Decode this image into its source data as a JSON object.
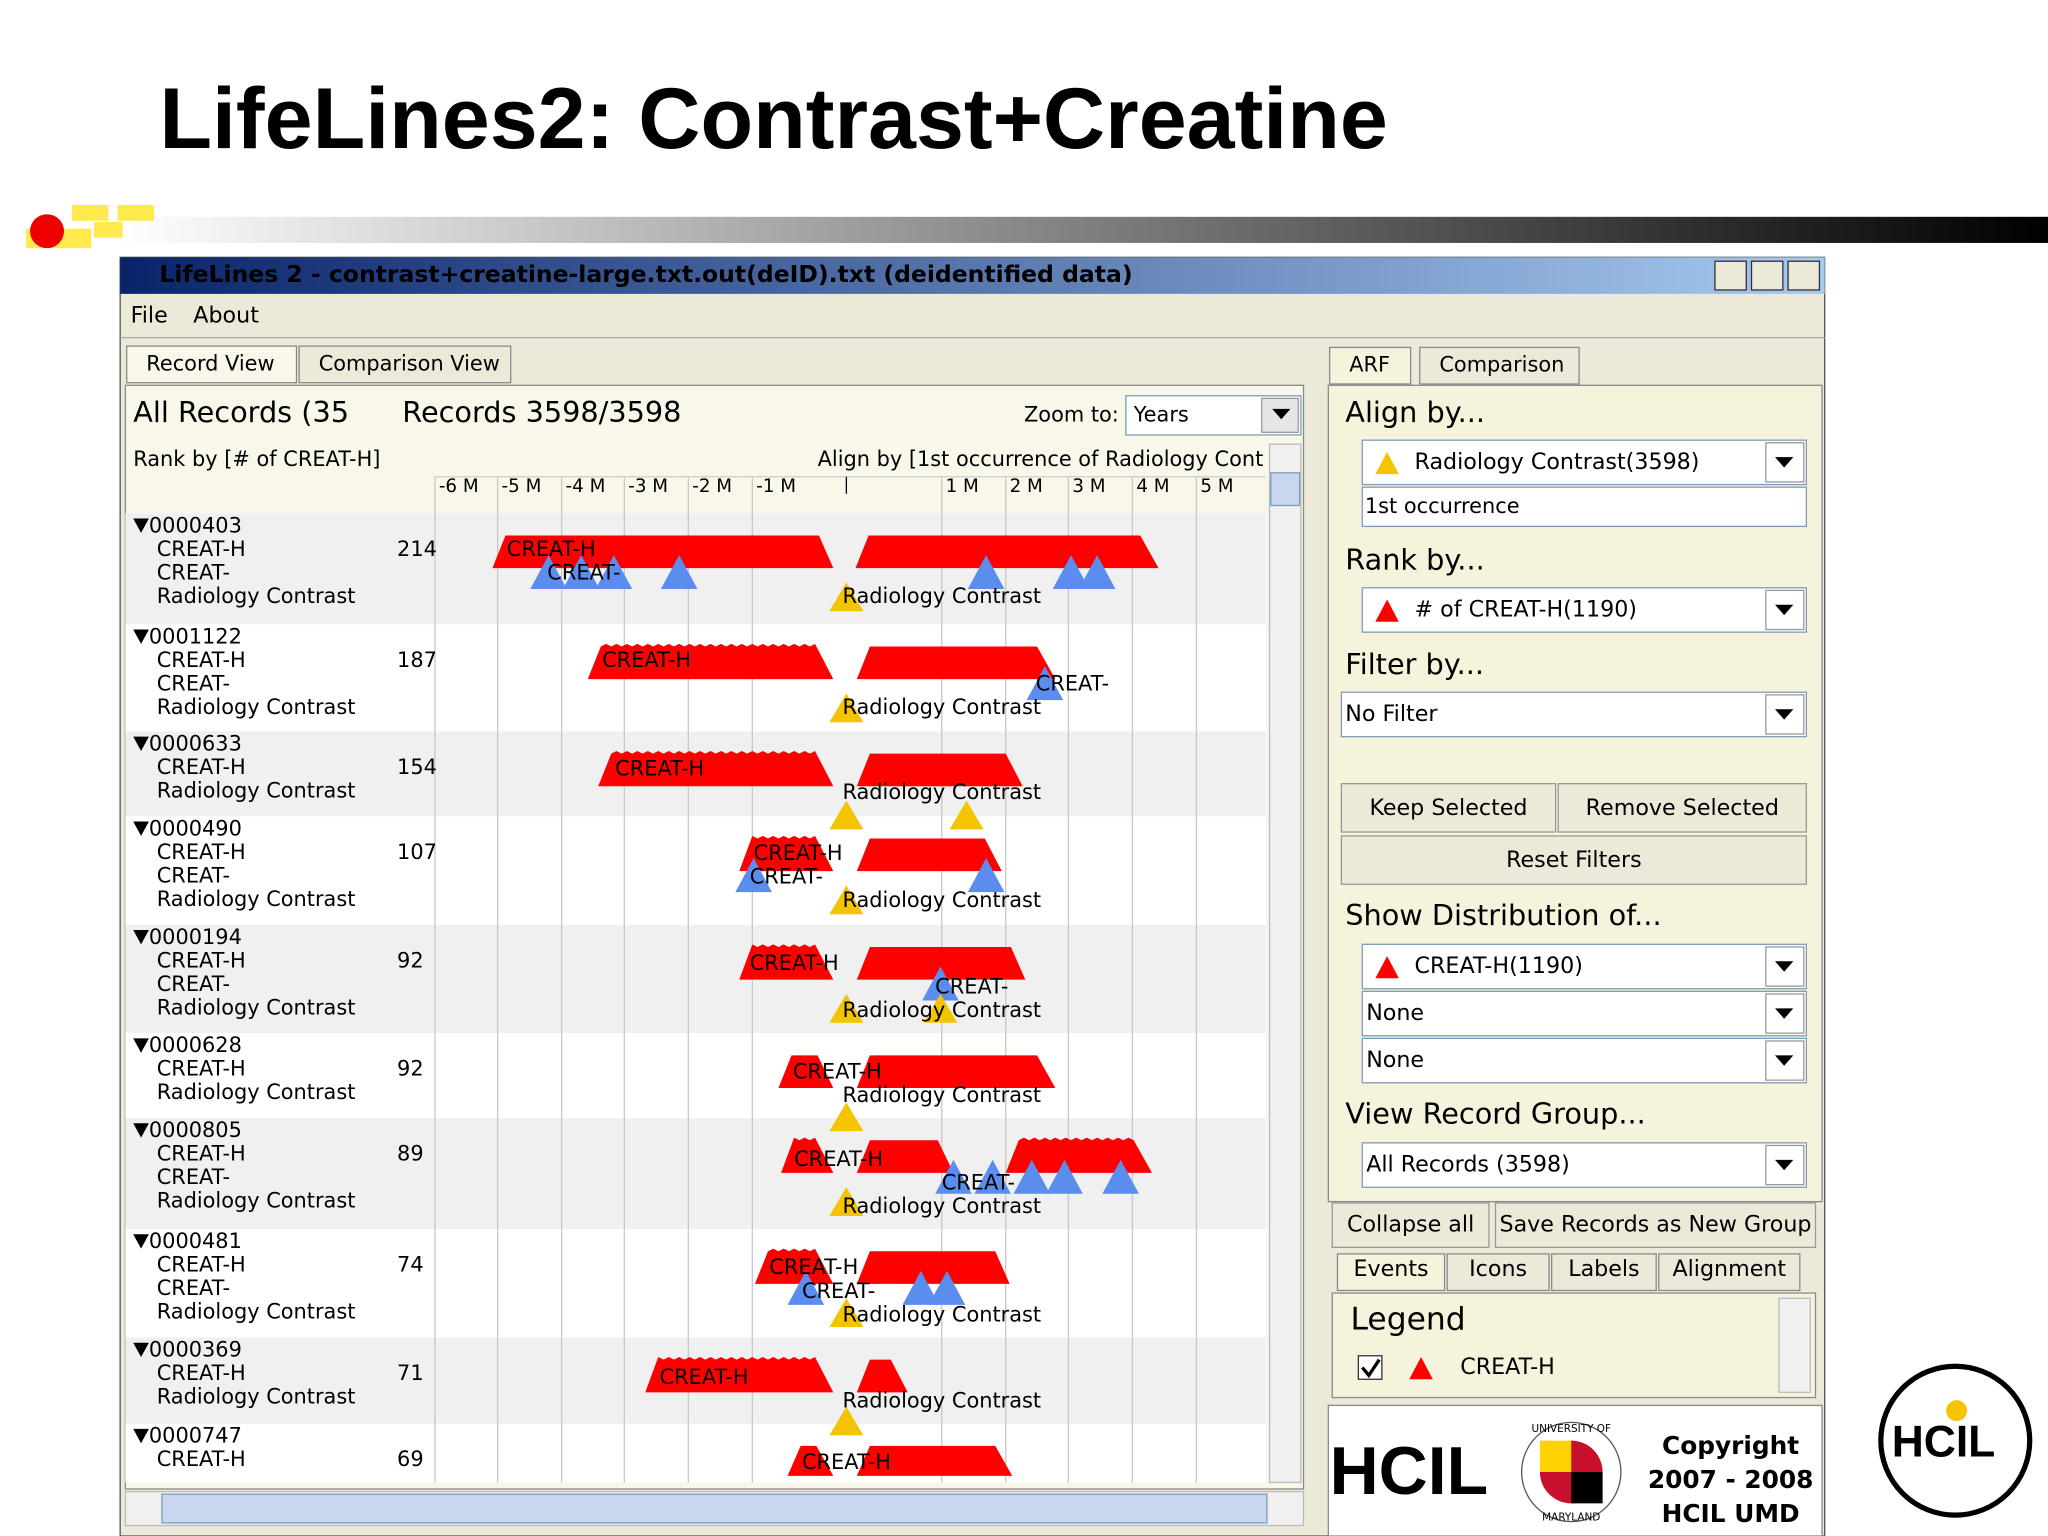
{
  "slide_title": "LifeLines2: Contrast+Creatine",
  "window": {
    "title": "LifeLines 2 - contrast+creatine-large.txt.out(deID).txt (deidentified data)",
    "menu": [
      "File",
      "About"
    ]
  },
  "left_panel": {
    "tabs": [
      "Record View",
      "Comparison View"
    ],
    "group_label": "All Records (35",
    "records_label": "Records 3598/3598",
    "zoom_label": "Zoom to:",
    "zoom_value": "Years",
    "rank_label": "Rank by [# of CREAT-H]",
    "align_label": "Align by  [1st occurrence of Radiology Cont",
    "time_ticks": [
      "-6 M",
      "-5 M",
      "-4 M",
      "-3 M",
      "-2 M",
      "-1 M",
      "1 M",
      "2 M",
      "3 M",
      "4 M",
      "5 M"
    ],
    "records": [
      {
        "id": "0000403",
        "count": 214,
        "events": [
          "CREAT-H",
          "CREAT-",
          "Radiology Contrast"
        ]
      },
      {
        "id": "0001122",
        "count": 187,
        "events": [
          "CREAT-H",
          "CREAT-",
          "Radiology Contrast"
        ]
      },
      {
        "id": "0000633",
        "count": 154,
        "events": [
          "CREAT-H",
          "Radiology Contrast"
        ]
      },
      {
        "id": "0000490",
        "count": 107,
        "events": [
          "CREAT-H",
          "CREAT-",
          "Radiology Contrast"
        ]
      },
      {
        "id": "0000194",
        "count": 92,
        "events": [
          "CREAT-H",
          "CREAT-",
          "Radiology Contrast"
        ]
      },
      {
        "id": "0000628",
        "count": 92,
        "events": [
          "CREAT-H",
          "Radiology Contrast"
        ]
      },
      {
        "id": "0000805",
        "count": 89,
        "events": [
          "CREAT-H",
          "CREAT-",
          "Radiology Contrast"
        ]
      },
      {
        "id": "0000481",
        "count": 74,
        "events": [
          "CREAT-H",
          "CREAT-",
          "Radiology Contrast"
        ]
      },
      {
        "id": "0000369",
        "count": 71,
        "events": [
          "CREAT-H",
          "Radiology Contrast"
        ]
      },
      {
        "id": "0000747",
        "count": 69,
        "events": [
          "CREAT-H"
        ]
      }
    ]
  },
  "right_panel": {
    "tabs": [
      "ARF",
      "Comparison"
    ],
    "align_heading": "Align by...",
    "align_event": "Radiology Contrast(3598)",
    "align_occurrence": "1st occurrence",
    "rank_heading": "Rank by...",
    "rank_value": "# of CREAT-H(1190)",
    "filter_heading": "Filter by...",
    "filter_value": "No Filter",
    "buttons": [
      "Keep Selected",
      "Remove Selected",
      "Reset Filters"
    ],
    "distribution_heading": "Show Distribution of...",
    "distribution_values": [
      "CREAT-H(1190)",
      "None",
      "None"
    ],
    "group_heading": "View Record Group...",
    "group_value": "All Records (3598)",
    "group_buttons": [
      "Collapse all",
      "Save Records as New Group"
    ],
    "bottom_tabs": [
      "Events",
      "Icons",
      "Labels",
      "Alignment"
    ],
    "legend_title": "Legend",
    "legend_item": "CREAT-H"
  },
  "logos": {
    "hcil": "HCIL",
    "umd": [
      "UNIVERSITY OF",
      "MARYLAND"
    ],
    "copyright": [
      "Copyright",
      "2007 - 2008",
      "HCIL  UMD"
    ],
    "corner": "HCIL"
  }
}
